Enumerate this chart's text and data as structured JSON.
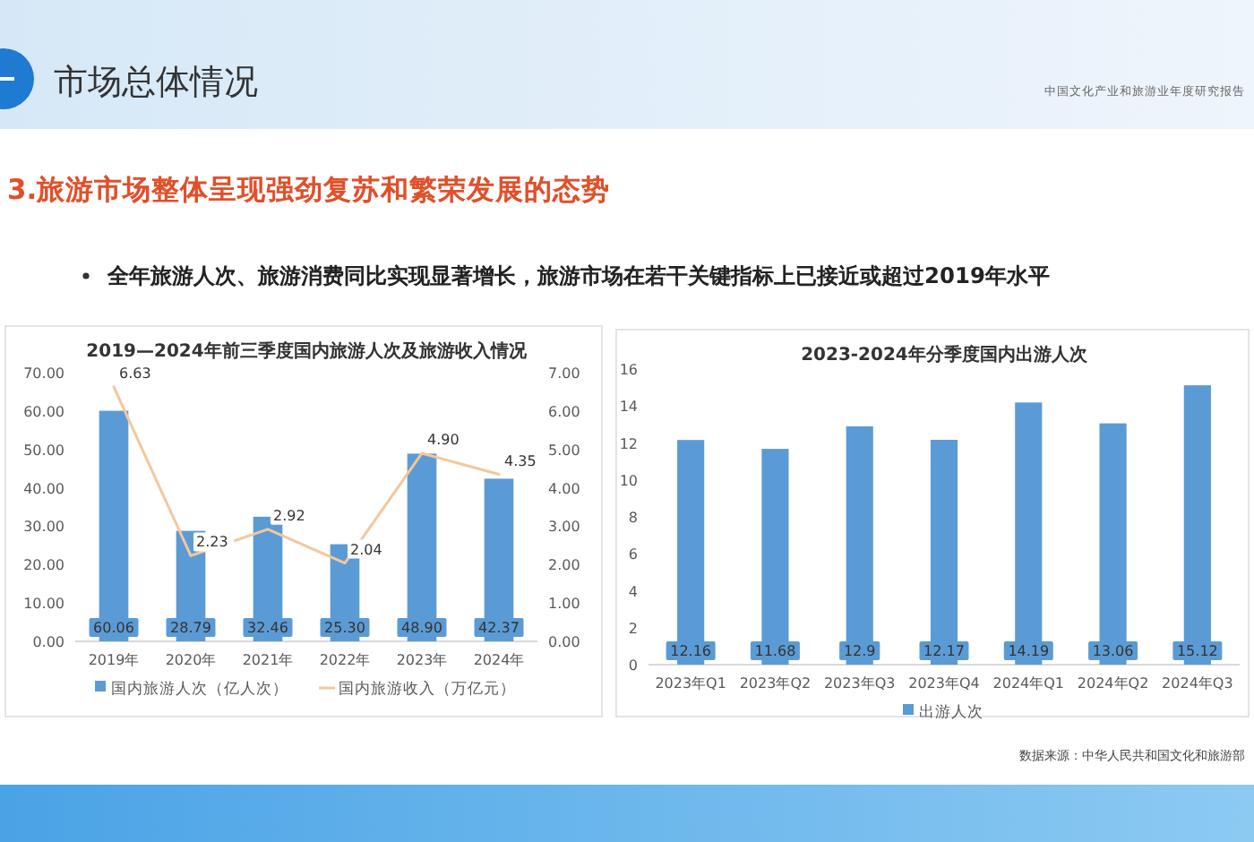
{
  "chart_data": [
    {
      "type": "other",
      "title": "市场总体情况",
      "subtitle": "3.旅游市场整体呈现强劲复苏和繁荣发展的态势",
      "annotations": [
        "全年旅游人次、旅游消费同比实现显著增长，旅游市场在若干关键指标上已接近或超过2019年水平",
        "中国文化产业和旅游业年度研究报告",
        "数据来源：中华人民共和国文化和旅游部"
      ]
    },
    {
      "type": "bar",
      "title": "2019—2024年前三季度国内旅游人次及旅游收入情况",
      "categories": [
        "2019年",
        "2020年",
        "2021年",
        "2022年",
        "2023年",
        "2024年"
      ],
      "series": [
        {
          "name": "国内旅游人次（亿人次）",
          "type": "bar",
          "color": "#5b9bd5",
          "values": [
            60.06,
            28.79,
            32.46,
            25.3,
            48.9,
            42.37
          ],
          "value_labels": [
            "60.06",
            "28.79",
            "32.46",
            "25.30",
            "48.90",
            "42.37"
          ]
        },
        {
          "name": "国内旅游收入（万亿元）",
          "type": "line",
          "axis": "y2",
          "color": "#f4c79c",
          "values": [
            6.63,
            2.23,
            2.92,
            2.04,
            4.9,
            4.35
          ],
          "value_labels": [
            "6.63",
            "2.23",
            "2.92",
            "2.04",
            "4.90",
            "4.35"
          ]
        }
      ],
      "ylim": [
        0,
        70
      ],
      "yticks": [
        {
          "value": 0,
          "label": "0.00"
        },
        {
          "value": 10,
          "label": "10.00"
        },
        {
          "value": 20,
          "label": "20.00"
        },
        {
          "value": 30,
          "label": "30.00"
        },
        {
          "value": 40,
          "label": "40.00"
        },
        {
          "value": 50,
          "label": "50.00"
        },
        {
          "value": 60,
          "label": "60.00"
        },
        {
          "value": 70,
          "label": "70.00"
        }
      ],
      "y2lim": [
        0,
        7
      ],
      "y2ticks": [
        {
          "value": 0,
          "label": "0.00"
        },
        {
          "value": 1,
          "label": "1.00"
        },
        {
          "value": 2,
          "label": "2.00"
        },
        {
          "value": 3,
          "label": "3.00"
        },
        {
          "value": 4,
          "label": "4.00"
        },
        {
          "value": 5,
          "label": "5.00"
        },
        {
          "value": 6,
          "label": "6.00"
        },
        {
          "value": 7,
          "label": "7.00"
        }
      ],
      "legend": "bottom"
    },
    {
      "type": "bar",
      "title": "2023-2024年分季度国内出游人次",
      "categories": [
        "2023年Q1",
        "2023年Q2",
        "2023年Q3",
        "2023年Q4",
        "2024年Q1",
        "2024年Q2",
        "2024年Q3"
      ],
      "series": [
        {
          "name": "出游人次",
          "type": "bar",
          "color": "#5b9bd5",
          "values": [
            12.16,
            11.68,
            12.9,
            12.17,
            14.19,
            13.06,
            15.12
          ]
        }
      ],
      "data_labels": true,
      "ylim": [
        0,
        16
      ],
      "yticks": [
        0,
        2,
        4,
        6,
        8,
        10,
        12,
        14,
        16
      ],
      "legend": "bottom"
    }
  ]
}
